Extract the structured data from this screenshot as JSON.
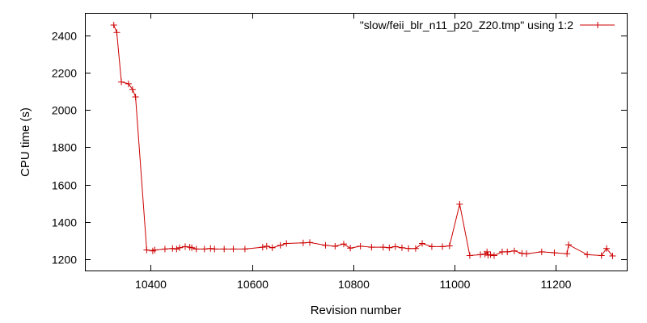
{
  "chart_data": {
    "type": "line",
    "title": "",
    "xlabel": "Revision number",
    "ylabel": "CPU time (s)",
    "xlim": [
      10270,
      11340
    ],
    "ylim": [
      1140,
      2520
    ],
    "x_ticks": [
      10400,
      10600,
      10800,
      11000,
      11200
    ],
    "y_ticks": [
      1200,
      1400,
      1600,
      1800,
      2000,
      2200,
      2400
    ],
    "grid": false,
    "legend_position": "top-right",
    "series": [
      {
        "name": "\"slow/feii_blr_n11_p20_Z20.tmp\" using 1:2",
        "color": "#cc0000",
        "marker": "plus",
        "x": [
          10327,
          10333,
          10342,
          10356,
          10364,
          10370,
          10392,
          10404,
          10408,
          10428,
          10443,
          10451,
          10457,
          10468,
          10477,
          10481,
          10490,
          10506,
          10518,
          10526,
          10545,
          10563,
          10586,
          10621,
          10629,
          10640,
          10656,
          10668,
          10701,
          10714,
          10745,
          10764,
          10781,
          10794,
          10814,
          10836,
          10859,
          10871,
          10883,
          10896,
          10909,
          10923,
          10936,
          10955,
          10976,
          10990,
          11010,
          11030,
          11051,
          11060,
          11064,
          11066,
          11071,
          11078,
          11094,
          11104,
          11118,
          11133,
          11142,
          11172,
          11197,
          11222,
          11225,
          11262,
          11290,
          11300,
          11312
        ],
        "y": [
          2455,
          2415,
          2150,
          2140,
          2110,
          2070,
          1250,
          1245,
          1250,
          1255,
          1258,
          1255,
          1262,
          1268,
          1265,
          1262,
          1255,
          1255,
          1258,
          1255,
          1255,
          1255,
          1255,
          1265,
          1270,
          1262,
          1275,
          1285,
          1288,
          1290,
          1275,
          1270,
          1282,
          1260,
          1270,
          1265,
          1265,
          1262,
          1268,
          1262,
          1258,
          1258,
          1285,
          1268,
          1268,
          1272,
          1495,
          1220,
          1225,
          1228,
          1240,
          1222,
          1225,
          1220,
          1240,
          1240,
          1245,
          1232,
          1230,
          1240,
          1235,
          1230,
          1278,
          1225,
          1220,
          1258,
          1218
        ]
      }
    ]
  }
}
